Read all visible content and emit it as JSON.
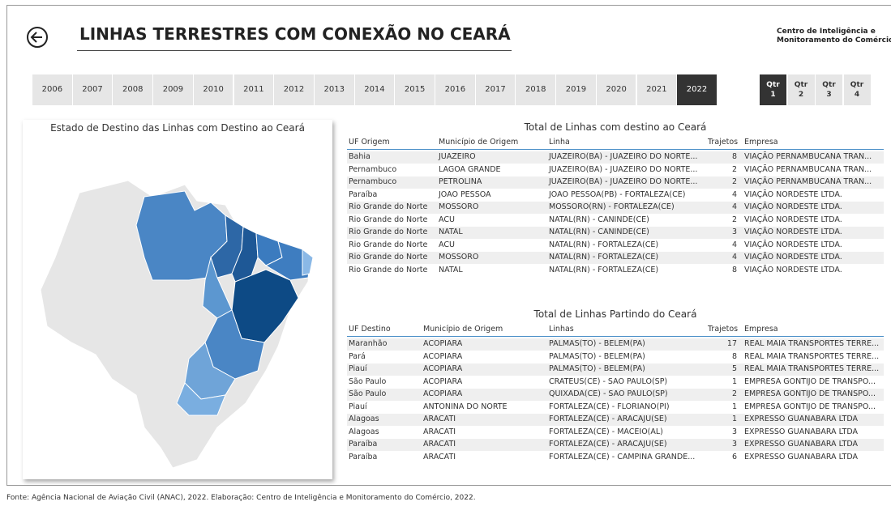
{
  "header": {
    "title": "LINHAS TERRESTRES COM CONEXÃO NO CEARÁ",
    "org_line1": "Centro de Inteligência e",
    "org_line2": "Monitoramento do Comércio"
  },
  "years": [
    {
      "label": "2006"
    },
    {
      "label": "2007"
    },
    {
      "label": "2008"
    },
    {
      "label": "2009"
    },
    {
      "label": "2010"
    },
    {
      "label": "2011"
    },
    {
      "label": "2012"
    },
    {
      "label": "2013"
    },
    {
      "label": "2014"
    },
    {
      "label": "2015"
    },
    {
      "label": "2016"
    },
    {
      "label": "2017"
    },
    {
      "label": "2018"
    },
    {
      "label": "2019"
    },
    {
      "label": "2020"
    },
    {
      "label": "2021"
    },
    {
      "label": "2022",
      "selected": true
    }
  ],
  "quarters": [
    {
      "line1": "Qtr",
      "line2": "1",
      "selected": true
    },
    {
      "line1": "Qtr",
      "line2": "2"
    },
    {
      "line1": "Qtr",
      "line2": "3"
    },
    {
      "line1": "Qtr",
      "line2": "4"
    }
  ],
  "map": {
    "title": "Estado de Destino das Linhas com Destino ao Ceará"
  },
  "table1": {
    "title": "Total de Linhas com destino ao Ceará",
    "columns": [
      "UF Origem",
      "Município de Origem",
      "Linha",
      "Trajetos",
      "Empresa"
    ],
    "rows": [
      [
        "Bahia",
        "JUAZEIRO",
        "JUAZEIRO(BA) - JUAZEIRO DO NORTE...",
        8,
        "VIAÇÃO PERNAMBUCANA TRAN..."
      ],
      [
        "Pernambuco",
        "LAGOA GRANDE",
        "JUAZEIRO(BA) - JUAZEIRO DO NORTE...",
        2,
        "VIAÇÃO PERNAMBUCANA TRAN..."
      ],
      [
        "Pernambuco",
        "PETROLINA",
        "JUAZEIRO(BA) - JUAZEIRO DO NORTE...",
        2,
        "VIAÇÃO PERNAMBUCANA TRAN..."
      ],
      [
        "Paraíba",
        "JOAO PESSOA",
        "JOAO PESSOA(PB) - FORTALEZA(CE)",
        4,
        "VIAÇÃO NORDESTE LTDA."
      ],
      [
        "Rio Grande do Norte",
        "MOSSORO",
        "MOSSORO(RN) - FORTALEZA(CE)",
        4,
        "VIAÇÃO NORDESTE LTDA."
      ],
      [
        "Rio Grande do Norte",
        "ACU",
        "NATAL(RN) - CANINDE(CE)",
        2,
        "VIAÇÃO NORDESTE LTDA."
      ],
      [
        "Rio Grande do Norte",
        "NATAL",
        "NATAL(RN) - CANINDE(CE)",
        3,
        "VIAÇÃO NORDESTE LTDA."
      ],
      [
        "Rio Grande do Norte",
        "ACU",
        "NATAL(RN) - FORTALEZA(CE)",
        4,
        "VIAÇÃO NORDESTE LTDA."
      ],
      [
        "Rio Grande do Norte",
        "MOSSORO",
        "NATAL(RN) - FORTALEZA(CE)",
        4,
        "VIAÇÃO NORDESTE LTDA."
      ],
      [
        "Rio Grande do Norte",
        "NATAL",
        "NATAL(RN) - FORTALEZA(CE)",
        8,
        "VIAÇÃO NORDESTE LTDA."
      ]
    ]
  },
  "table2": {
    "title": "Total de Linhas Partindo do Ceará",
    "columns": [
      "UF Destino",
      "Município de Origem",
      "Linhas",
      "Trajetos",
      "Empresa"
    ],
    "rows": [
      [
        "Maranhão",
        "ACOPIARA",
        "PALMAS(TO) - BELEM(PA)",
        17,
        "REAL MAIA TRANSPORTES TERRE..."
      ],
      [
        "Pará",
        "ACOPIARA",
        "PALMAS(TO) - BELEM(PA)",
        8,
        "REAL MAIA TRANSPORTES TERRE..."
      ],
      [
        "Piauí",
        "ACOPIARA",
        "PALMAS(TO) - BELEM(PA)",
        5,
        "REAL MAIA TRANSPORTES TERRE..."
      ],
      [
        "São Paulo",
        "ACOPIARA",
        "CRATEUS(CE) - SAO PAULO(SP)",
        1,
        "EMPRESA GONTIJO DE TRANSPO..."
      ],
      [
        "São Paulo",
        "ACOPIARA",
        "QUIXADA(CE) - SAO PAULO(SP)",
        2,
        "EMPRESA GONTIJO DE TRANSPO..."
      ],
      [
        "Piauí",
        "ANTONINA DO NORTE",
        "FORTALEZA(CE) - FLORIANO(PI)",
        1,
        "EMPRESA GONTIJO DE TRANSPO..."
      ],
      [
        "Alagoas",
        "ARACATI",
        "FORTALEZA(CE) - ARACAJU(SE)",
        1,
        "EXPRESSO GUANABARA LTDA"
      ],
      [
        "Alagoas",
        "ARACATI",
        "FORTALEZA(CE) - MACEIO(AL)",
        3,
        "EXPRESSO GUANABARA LTDA"
      ],
      [
        "Paraíba",
        "ARACATI",
        "FORTALEZA(CE) - ARACAJU(SE)",
        3,
        "EXPRESSO GUANABARA LTDA"
      ],
      [
        "Paraíba",
        "ARACATI",
        "FORTALEZA(CE) - CAMPINA GRANDE...",
        6,
        "EXPRESSO GUANABARA LTDA"
      ]
    ]
  },
  "footer": "Fonte: Agência Nacional de Aviação Civil (ANAC), 2022. Elaboração: Centro de Inteligência e Monitoramento do Comércio, 2022."
}
